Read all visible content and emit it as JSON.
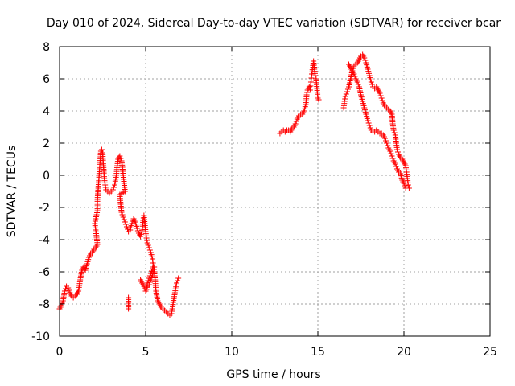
{
  "chart_data": {
    "type": "scatter",
    "title": "Day 010 of 2024, Sidereal Day-to-day VTEC variation (SDTVAR) for receiver bcar",
    "xlabel": "GPS time / hours",
    "ylabel": "SDTVAR / TECUs",
    "xlim": [
      0,
      25
    ],
    "ylim": [
      -10,
      8
    ],
    "xticks": [
      0,
      5,
      10,
      15,
      20,
      25
    ],
    "yticks": [
      -10,
      -8,
      -6,
      -4,
      -2,
      0,
      2,
      4,
      6,
      8
    ],
    "grid": true,
    "marker": "+",
    "color": "#ff0000",
    "series": [
      {
        "name": "SDTVAR",
        "segments": [
          [
            [
              0.0,
              -8.3
            ],
            [
              0.1,
              -8.1
            ],
            [
              0.2,
              -7.8
            ],
            [
              0.3,
              -7.2
            ],
            [
              0.4,
              -6.9
            ],
            [
              0.5,
              -7.0
            ],
            [
              0.6,
              -7.3
            ],
            [
              0.7,
              -7.5
            ],
            [
              0.8,
              -7.6
            ],
            [
              0.9,
              -7.5
            ],
            [
              1.0,
              -7.4
            ],
            [
              1.1,
              -7.2
            ],
            [
              1.2,
              -6.5
            ],
            [
              1.3,
              -5.9
            ],
            [
              1.4,
              -5.7
            ],
            [
              1.5,
              -5.9
            ],
            [
              1.6,
              -5.5
            ],
            [
              1.7,
              -5.1
            ],
            [
              1.8,
              -4.9
            ],
            [
              1.9,
              -4.8
            ],
            [
              2.0,
              -4.6
            ],
            [
              2.1,
              -4.5
            ],
            [
              2.2,
              -4.3
            ],
            [
              2.1,
              -3.4
            ],
            [
              2.05,
              -3.0
            ],
            [
              2.1,
              -2.7
            ],
            [
              2.2,
              -2.2
            ],
            [
              2.2,
              -1.5
            ],
            [
              2.25,
              -0.8
            ],
            [
              2.3,
              0.0
            ],
            [
              2.35,
              0.8
            ],
            [
              2.4,
              1.5
            ],
            [
              2.45,
              1.6
            ],
            [
              2.5,
              1.4
            ],
            [
              2.55,
              0.6
            ],
            [
              2.6,
              -0.2
            ],
            [
              2.65,
              -0.6
            ],
            [
              2.7,
              -0.9
            ],
            [
              2.8,
              -1.0
            ],
            [
              2.9,
              -1.1
            ],
            [
              3.0,
              -1.0
            ],
            [
              3.1,
              -0.9
            ],
            [
              3.2,
              -0.6
            ],
            [
              3.3,
              0.0
            ],
            [
              3.35,
              0.6
            ],
            [
              3.4,
              1.0
            ],
            [
              3.5,
              1.2
            ],
            [
              3.6,
              0.9
            ],
            [
              3.65,
              0.5
            ],
            [
              3.7,
              0.0
            ],
            [
              3.75,
              -0.5
            ],
            [
              3.8,
              -1.0
            ],
            [
              3.5,
              -1.2
            ],
            [
              3.55,
              -1.8
            ],
            [
              3.6,
              -2.3
            ],
            [
              3.7,
              -2.6
            ],
            [
              3.8,
              -2.9
            ],
            [
              3.9,
              -3.2
            ],
            [
              4.0,
              -3.5
            ],
            [
              4.1,
              -3.4
            ],
            [
              4.2,
              -3.0
            ],
            [
              4.3,
              -2.7
            ],
            [
              4.4,
              -2.9
            ],
            [
              4.5,
              -3.3
            ],
            [
              4.6,
              -3.6
            ],
            [
              4.7,
              -3.8
            ],
            [
              4.8,
              -3.4
            ],
            [
              4.85,
              -2.8
            ],
            [
              4.9,
              -2.5
            ],
            [
              4.95,
              -3.0
            ],
            [
              5.0,
              -3.5
            ],
            [
              5.05,
              -3.9
            ],
            [
              5.1,
              -4.2
            ],
            [
              5.2,
              -4.5
            ],
            [
              5.3,
              -4.8
            ],
            [
              5.4,
              -5.2
            ],
            [
              5.45,
              -5.7
            ],
            [
              5.5,
              -6.0
            ],
            [
              5.55,
              -6.5
            ],
            [
              5.6,
              -7.2
            ],
            [
              5.7,
              -7.8
            ],
            [
              5.8,
              -8.0
            ],
            [
              5.9,
              -8.2
            ],
            [
              6.0,
              -8.3
            ],
            [
              6.1,
              -8.4
            ],
            [
              6.2,
              -8.5
            ],
            [
              6.3,
              -8.6
            ],
            [
              6.4,
              -8.7
            ],
            [
              6.5,
              -8.6
            ],
            [
              6.55,
              -8.3
            ],
            [
              6.6,
              -7.9
            ],
            [
              6.7,
              -7.3
            ],
            [
              6.8,
              -6.7
            ],
            [
              6.9,
              -6.4
            ]
          ],
          [
            [
              4.0,
              -7.6
            ],
            [
              4.0,
              -8.3
            ]
          ],
          [
            [
              4.7,
              -6.5
            ],
            [
              4.8,
              -6.7
            ],
            [
              4.9,
              -6.9
            ],
            [
              5.0,
              -7.2
            ],
            [
              5.05,
              -7.1
            ],
            [
              5.1,
              -6.7
            ],
            [
              5.2,
              -6.4
            ],
            [
              5.3,
              -6.1
            ],
            [
              5.4,
              -5.8
            ],
            [
              5.5,
              -5.7
            ],
            [
              5.45,
              -6.0
            ],
            [
              5.3,
              -6.5
            ],
            [
              5.2,
              -6.8
            ],
            [
              5.1,
              -6.9
            ]
          ],
          [
            [
              12.8,
              2.6
            ],
            [
              12.9,
              2.7
            ],
            [
              13.0,
              2.8
            ],
            [
              13.1,
              2.7
            ],
            [
              13.2,
              2.8
            ],
            [
              13.3,
              2.8
            ],
            [
              13.4,
              2.7
            ],
            [
              13.5,
              2.9
            ],
            [
              13.6,
              3.0
            ],
            [
              13.7,
              3.2
            ],
            [
              13.8,
              3.5
            ],
            [
              13.9,
              3.7
            ],
            [
              14.0,
              3.8
            ],
            [
              14.1,
              3.8
            ],
            [
              14.2,
              4.0
            ],
            [
              14.3,
              4.4
            ],
            [
              14.35,
              5.0
            ],
            [
              14.4,
              5.3
            ],
            [
              14.5,
              5.5
            ],
            [
              14.55,
              5.3
            ],
            [
              14.6,
              5.8
            ],
            [
              14.65,
              6.3
            ],
            [
              14.7,
              6.7
            ],
            [
              14.75,
              7.1
            ],
            [
              14.8,
              6.6
            ],
            [
              14.85,
              6.2
            ],
            [
              14.9,
              6.0
            ],
            [
              14.95,
              5.4
            ],
            [
              15.0,
              4.8
            ],
            [
              15.05,
              4.7
            ]
          ],
          [
            [
              16.5,
              4.2
            ],
            [
              16.55,
              4.6
            ],
            [
              16.6,
              4.9
            ],
            [
              16.7,
              5.2
            ],
            [
              16.8,
              5.5
            ],
            [
              16.9,
              6.0
            ],
            [
              17.0,
              6.5
            ],
            [
              17.1,
              6.8
            ],
            [
              17.2,
              6.9
            ],
            [
              17.3,
              7.0
            ],
            [
              17.4,
              7.2
            ],
            [
              17.5,
              7.4
            ],
            [
              17.6,
              7.5
            ],
            [
              17.7,
              7.3
            ],
            [
              17.8,
              7.0
            ],
            [
              17.9,
              6.6
            ],
            [
              18.0,
              6.2
            ],
            [
              18.1,
              5.8
            ],
            [
              18.2,
              5.5
            ],
            [
              18.3,
              5.4
            ],
            [
              18.4,
              5.5
            ],
            [
              18.5,
              5.3
            ],
            [
              18.6,
              5.1
            ],
            [
              18.7,
              4.8
            ],
            [
              18.8,
              4.5
            ],
            [
              18.9,
              4.3
            ],
            [
              19.0,
              4.2
            ],
            [
              19.1,
              4.1
            ],
            [
              19.2,
              4.0
            ],
            [
              19.3,
              3.8
            ],
            [
              19.35,
              3.2
            ],
            [
              19.4,
              2.8
            ],
            [
              19.5,
              2.5
            ],
            [
              19.55,
              2.0
            ],
            [
              19.6,
              1.6
            ],
            [
              19.7,
              1.3
            ],
            [
              19.8,
              1.1
            ],
            [
              19.9,
              1.0
            ],
            [
              20.0,
              0.8
            ],
            [
              20.1,
              0.6
            ],
            [
              20.15,
              0.2
            ],
            [
              20.2,
              -0.2
            ],
            [
              20.25,
              -0.6
            ],
            [
              20.3,
              -0.8
            ]
          ],
          [
            [
              16.8,
              6.9
            ],
            [
              16.9,
              6.7
            ],
            [
              17.0,
              6.5
            ],
            [
              17.1,
              6.3
            ],
            [
              17.2,
              6.0
            ],
            [
              17.3,
              5.8
            ],
            [
              17.4,
              5.5
            ],
            [
              17.5,
              5.0
            ],
            [
              17.6,
              4.6
            ],
            [
              17.7,
              4.2
            ],
            [
              17.8,
              3.8
            ],
            [
              17.9,
              3.4
            ],
            [
              18.0,
              3.1
            ],
            [
              18.1,
              2.8
            ],
            [
              18.2,
              2.7
            ],
            [
              18.3,
              2.7
            ],
            [
              18.4,
              2.8
            ],
            [
              18.5,
              2.7
            ],
            [
              18.6,
              2.6
            ],
            [
              18.7,
              2.6
            ],
            [
              18.8,
              2.5
            ],
            [
              18.9,
              2.3
            ],
            [
              19.0,
              2.0
            ],
            [
              19.1,
              1.7
            ],
            [
              19.2,
              1.5
            ],
            [
              19.3,
              1.2
            ],
            [
              19.4,
              0.9
            ],
            [
              19.5,
              0.7
            ],
            [
              19.6,
              0.4
            ],
            [
              19.7,
              0.2
            ],
            [
              19.8,
              0.1
            ],
            [
              19.9,
              -0.3
            ],
            [
              20.0,
              -0.5
            ],
            [
              20.1,
              -0.8
            ]
          ]
        ]
      }
    ]
  }
}
